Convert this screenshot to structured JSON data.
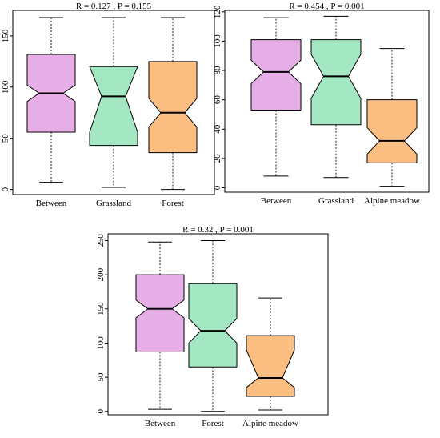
{
  "chart_data": [
    {
      "type": "boxplot",
      "title": "R = 0.127 ,  P = 0.155",
      "categories": [
        "Between",
        "Grassland",
        "Forest"
      ],
      "ylim": [
        -5,
        175
      ],
      "yticks": [
        0,
        50,
        100,
        150
      ],
      "boxes": [
        {
          "category": "Between",
          "min": 7,
          "q1": 56,
          "median": 94,
          "q3": 132,
          "max": 168,
          "notch_low": 86,
          "notch_high": 102,
          "color": "#e6aee6"
        },
        {
          "category": "Grassland",
          "min": 2,
          "q1": 43,
          "median": 91,
          "q3": 120,
          "max": 168,
          "notch_low": 56,
          "notch_high": 120,
          "color": "#a3e8c2"
        },
        {
          "category": "Forest",
          "min": 0,
          "q1": 36,
          "median": 75,
          "q3": 125,
          "max": 168,
          "notch_low": 61,
          "notch_high": 89,
          "color": "#fdbe82"
        }
      ]
    },
    {
      "type": "boxplot",
      "title": "R = 0.454 ,  P = 0.001",
      "categories": [
        "Between",
        "Grassland",
        "Alpine meadow"
      ],
      "ylim": [
        -3,
        121
      ],
      "yticks": [
        0,
        20,
        40,
        60,
        80,
        100,
        120
      ],
      "boxes": [
        {
          "category": "Between",
          "min": 8,
          "q1": 53,
          "median": 79,
          "q3": 101,
          "max": 116,
          "notch_low": 71,
          "notch_high": 87,
          "color": "#e6aee6"
        },
        {
          "category": "Grassland",
          "min": 7,
          "q1": 43,
          "median": 76,
          "q3": 101,
          "max": 117,
          "notch_low": 61,
          "notch_high": 91,
          "color": "#a3e8c2"
        },
        {
          "category": "Alpine meadow",
          "min": 1,
          "q1": 17,
          "median": 32,
          "q3": 60,
          "max": 95,
          "notch_low": 23,
          "notch_high": 41,
          "color": "#fdbe82"
        }
      ]
    },
    {
      "type": "boxplot",
      "title": "R = 0.32 ,  P = 0.001",
      "categories": [
        "Between",
        "Forest",
        "Alpine meadow"
      ],
      "ylim": [
        -5,
        260
      ],
      "yticks": [
        0,
        50,
        100,
        150,
        200,
        250
      ],
      "boxes": [
        {
          "category": "Between",
          "min": 3,
          "q1": 87,
          "median": 150,
          "q3": 200,
          "max": 248,
          "notch_low": 137,
          "notch_high": 163,
          "color": "#e6aee6"
        },
        {
          "category": "Forest",
          "min": 0,
          "q1": 65,
          "median": 118,
          "q3": 187,
          "max": 250,
          "notch_low": 100,
          "notch_high": 136,
          "color": "#a3e8c2"
        },
        {
          "category": "Alpine meadow",
          "min": 2,
          "q1": 22,
          "median": 49,
          "q3": 111,
          "max": 166,
          "notch_low": 35,
          "notch_high": 90,
          "color": "#fdbe82"
        }
      ]
    }
  ]
}
